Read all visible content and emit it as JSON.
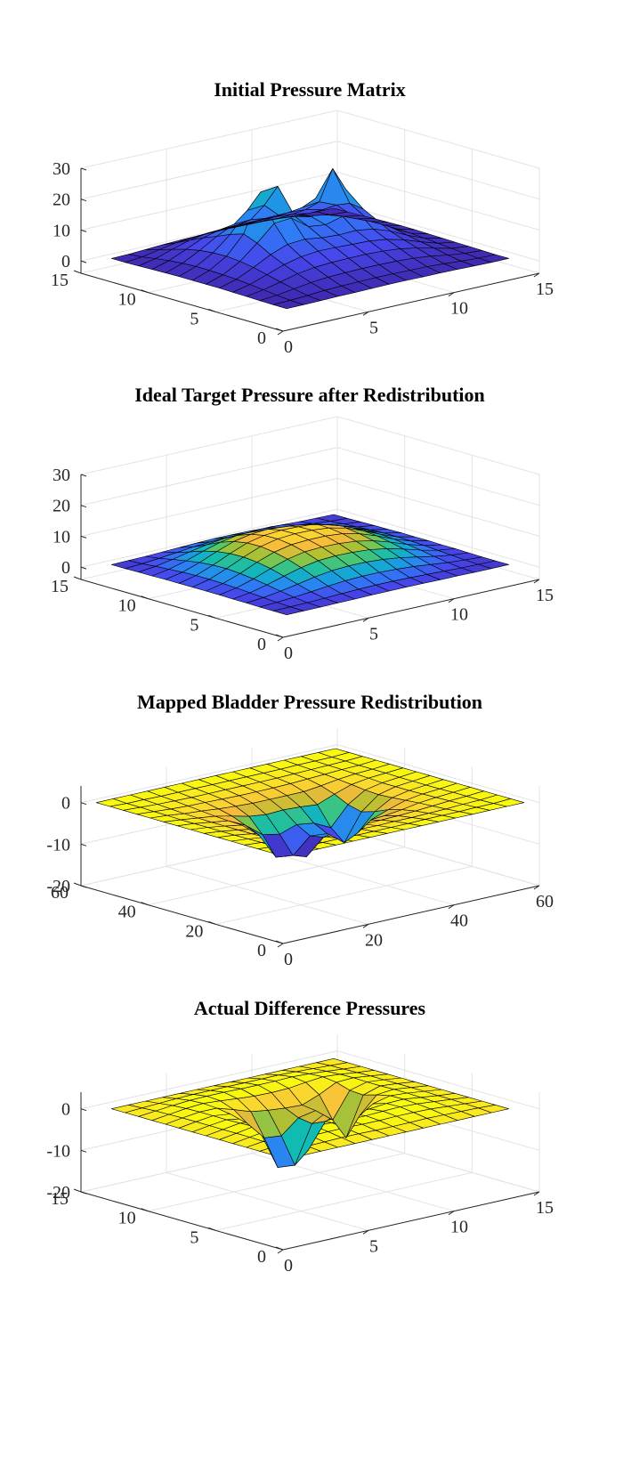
{
  "figure": {
    "background": "#ffffff",
    "colormap": "parula",
    "colormap_stops": [
      "#3e26a8",
      "#4746eb",
      "#2f7cf6",
      "#18a3dc",
      "#12bcb0",
      "#59c864",
      "#b2c032",
      "#f6ba3c",
      "#fad82f",
      "#f9fb0e"
    ],
    "edge_color": "#000000"
  },
  "chart_data": [
    {
      "type": "surface",
      "title": "Initial Pressure Matrix",
      "xlabel": "",
      "ylabel": "",
      "zlabel": "",
      "xlim": [
        0,
        15
      ],
      "ylim": [
        0,
        15
      ],
      "zlim": [
        -4,
        30
      ],
      "clim": [
        0,
        60
      ],
      "x_ticks": [
        "0",
        "5",
        "10",
        "15"
      ],
      "y_ticks": [
        "0",
        "5",
        "10",
        "15"
      ],
      "z_ticks": [
        "0",
        "10",
        "20",
        "30"
      ],
      "x_tick_values": [
        0,
        5,
        10,
        15
      ],
      "y_tick_values": [
        0,
        5,
        10,
        15
      ],
      "z_tick_values": [
        0,
        10,
        20,
        30
      ],
      "grid": true,
      "x": [
        1,
        2,
        3,
        4,
        5,
        6,
        7,
        8,
        9,
        10,
        11,
        12,
        13,
        14
      ],
      "y": [
        1,
        2,
        3,
        4,
        5,
        6,
        7,
        8,
        9,
        10,
        11,
        12,
        13,
        14
      ],
      "z": [
        [
          0.8,
          0.8,
          0.9,
          1,
          1,
          1.1,
          1.2,
          1.2,
          1.1,
          1.1,
          1,
          0.9,
          0.8,
          0.8
        ],
        [
          0.8,
          1,
          1.3,
          1.7,
          1.9,
          2,
          2.1,
          2.1,
          2,
          1.9,
          1.6,
          1.2,
          0.9,
          0.8
        ],
        [
          0.9,
          1.4,
          2.2,
          3,
          3.5,
          3.7,
          3.8,
          3.8,
          3.7,
          3.4,
          2.8,
          1.9,
          1.2,
          0.9
        ],
        [
          1,
          1.9,
          3.2,
          4.6,
          5.4,
          5.8,
          5.9,
          5.9,
          5.7,
          5.2,
          4.2,
          2.9,
          1.6,
          1
        ],
        [
          1.1,
          2.4,
          4.3,
          6.3,
          7.6,
          8.2,
          8.1,
          7.9,
          7.7,
          7,
          5.6,
          3.7,
          2,
          1.1
        ],
        [
          1.2,
          2.8,
          5.4,
          8.3,
          10.4,
          10.8,
          10,
          9.7,
          9.9,
          9.1,
          7.2,
          4.6,
          2.4,
          1.2
        ],
        [
          1.2,
          3,
          6.1,
          10.8,
          15.9,
          16.4,
          12.4,
          11.7,
          13.2,
          12.8,
          9.5,
          5.5,
          2.7,
          1.3
        ],
        [
          1.2,
          3.2,
          6.5,
          12.5,
          24.8,
          25.4,
          14.4,
          13,
          16.8,
          19.3,
          11.8,
          6.1,
          2.9,
          1.4
        ],
        [
          1.2,
          3.2,
          6.4,
          11.1,
          17.6,
          18,
          12.9,
          12.5,
          16.5,
          24.9,
          12.4,
          6.2,
          2.9,
          1.4
        ],
        [
          1.1,
          3,
          5.9,
          9.2,
          11.8,
          12.1,
          11.3,
          11.4,
          12.3,
          12.9,
          10.6,
          5.8,
          2.8,
          1.3
        ],
        [
          1,
          2.6,
          5,
          7.5,
          8.9,
          9.1,
          9.1,
          9.3,
          9.4,
          9.1,
          7.8,
          4.9,
          2.4,
          1.2
        ],
        [
          0.9,
          2,
          3.8,
          5.5,
          6.4,
          6.6,
          6.7,
          6.8,
          6.8,
          6.4,
          5.4,
          3.7,
          1.9,
          1
        ],
        [
          0.8,
          1.3,
          2.4,
          3.4,
          3.9,
          4.1,
          4.2,
          4.2,
          4.1,
          3.8,
          3.2,
          2.2,
          1.2,
          0.9
        ],
        [
          0.8,
          0.9,
          1.2,
          1.5,
          1.7,
          1.8,
          1.9,
          1.9,
          1.8,
          1.7,
          1.4,
          1.1,
          0.9,
          0.8
        ]
      ]
    },
    {
      "type": "surface",
      "title": "Ideal Target Pressure after Redistribution",
      "xlabel": "",
      "ylabel": "",
      "zlabel": "",
      "xlim": [
        0,
        15
      ],
      "ylim": [
        0,
        15
      ],
      "zlim": [
        -4,
        30
      ],
      "clim": [
        0,
        12
      ],
      "x_ticks": [
        "0",
        "5",
        "10",
        "15"
      ],
      "y_ticks": [
        "0",
        "5",
        "10",
        "15"
      ],
      "z_ticks": [
        "0",
        "10",
        "20",
        "30"
      ],
      "x_tick_values": [
        0,
        5,
        10,
        15
      ],
      "y_tick_values": [
        0,
        5,
        10,
        15
      ],
      "z_tick_values": [
        0,
        10,
        20,
        30
      ],
      "grid": true,
      "x": [
        1,
        2,
        3,
        4,
        5,
        6,
        7,
        8,
        9,
        10,
        11,
        12,
        13,
        14
      ],
      "y": [
        1,
        2,
        3,
        4,
        5,
        6,
        7,
        8,
        9,
        10,
        11,
        12,
        13,
        14
      ],
      "z": [
        [
          0.8,
          0.8,
          0.8,
          0.9,
          0.9,
          1,
          1,
          1,
          1,
          0.9,
          0.9,
          0.8,
          0.8,
          0.8
        ],
        [
          0.8,
          0.9,
          1,
          1.2,
          1.4,
          1.6,
          1.7,
          1.7,
          1.6,
          1.4,
          1.2,
          1,
          0.9,
          0.8
        ],
        [
          0.8,
          1.1,
          1.5,
          2,
          2.6,
          3.1,
          3.3,
          3.3,
          3.1,
          2.7,
          2.1,
          1.5,
          1.1,
          0.8
        ],
        [
          0.9,
          1.4,
          2.2,
          3.2,
          4.3,
          5.1,
          5.4,
          5.4,
          5,
          4.3,
          3.3,
          2.2,
          1.4,
          0.9
        ],
        [
          0.9,
          1.7,
          3,
          4.6,
          6.1,
          7.1,
          7.4,
          7.3,
          6.9,
          6,
          4.6,
          3,
          1.7,
          1
        ],
        [
          1,
          2,
          3.7,
          5.8,
          7.6,
          8.7,
          9,
          8.9,
          8.4,
          7.3,
          5.6,
          3.6,
          2,
          1
        ],
        [
          1,
          2.2,
          4.2,
          6.6,
          8.6,
          9.8,
          10.1,
          10.1,
          9.6,
          8.3,
          6.4,
          4.1,
          2.2,
          1.1
        ],
        [
          1,
          2.3,
          4.5,
          7,
          9.2,
          10.4,
          10.8,
          10.7,
          10.2,
          8.9,
          6.8,
          4.4,
          2.3,
          1.1
        ],
        [
          1,
          2.3,
          4.4,
          6.9,
          9.1,
          10.3,
          10.7,
          10.6,
          10.3,
          10.5,
          6.8,
          4.4,
          2.3,
          1.1
        ],
        [
          1,
          2.1,
          4,
          6.3,
          8.3,
          9.4,
          9.8,
          9.7,
          9.4,
          8.5,
          6.3,
          4,
          2.1,
          1
        ],
        [
          0.9,
          1.8,
          3.3,
          5.2,
          6.8,
          7.8,
          8.1,
          8.1,
          7.7,
          6.8,
          5.2,
          3.4,
          1.8,
          1
        ],
        [
          0.9,
          1.5,
          2.5,
          3.7,
          4.8,
          5.5,
          5.8,
          5.8,
          5.5,
          4.8,
          3.8,
          2.5,
          1.5,
          0.9
        ],
        [
          0.8,
          1.1,
          1.6,
          2.2,
          2.8,
          3.2,
          3.4,
          3.4,
          3.2,
          2.8,
          2.3,
          1.6,
          1.1,
          0.8
        ],
        [
          0.8,
          0.9,
          1,
          1.2,
          1.4,
          1.6,
          1.7,
          1.7,
          1.6,
          1.4,
          1.2,
          1,
          0.9,
          0.8
        ]
      ]
    },
    {
      "type": "surface",
      "title": "Mapped Bladder Pressure Redistribution",
      "xlabel": "",
      "ylabel": "",
      "zlabel": "",
      "xlim": [
        0,
        60
      ],
      "ylim": [
        0,
        60
      ],
      "zlim": [
        -20,
        4
      ],
      "clim": [
        -10,
        0
      ],
      "x_ticks": [
        "0",
        "20",
        "40",
        "60"
      ],
      "y_ticks": [
        "0",
        "20",
        "40",
        "60"
      ],
      "z_ticks": [
        "-20",
        "-10",
        "0"
      ],
      "x_tick_values": [
        0,
        20,
        40,
        60
      ],
      "y_tick_values": [
        0,
        20,
        40,
        60
      ],
      "z_tick_values": [
        -20,
        -10,
        0
      ],
      "grid": true,
      "x": [
        2,
        6,
        10,
        14,
        18,
        22,
        26,
        30,
        34,
        38,
        42,
        46,
        50,
        54,
        58
      ],
      "y": [
        2,
        6,
        10,
        14,
        18,
        22,
        26,
        30,
        34,
        38,
        42,
        46,
        50,
        54,
        58
      ],
      "z": [
        [
          0,
          0,
          0,
          0,
          0,
          0,
          0,
          0,
          0,
          0,
          0,
          0,
          0,
          0,
          0
        ],
        [
          0,
          -0.2,
          -0.3,
          -0.3,
          -0.3,
          -0.4,
          -0.4,
          -0.4,
          -0.4,
          -0.3,
          -0.3,
          -0.3,
          -0.2,
          -0.2,
          0
        ],
        [
          0,
          -0.3,
          -0.6,
          -0.7,
          -0.8,
          -0.8,
          -0.8,
          -0.9,
          -0.8,
          -0.8,
          -0.7,
          -0.6,
          -0.4,
          -0.3,
          0
        ],
        [
          0,
          -0.3,
          -0.8,
          -1.1,
          -1.3,
          -1.4,
          -1.5,
          -1.5,
          -1.4,
          -1.3,
          -1.1,
          -0.8,
          -0.5,
          -0.3,
          0
        ],
        [
          0,
          -0.4,
          -0.9,
          -1.4,
          -2,
          -2.4,
          -2.6,
          -2.6,
          -2.5,
          -2.2,
          -1.7,
          -1,
          -0.6,
          -0.3,
          0
        ],
        [
          0,
          -0.4,
          -1,
          -1.6,
          -3,
          -4.5,
          -5.6,
          -4.8,
          -4.3,
          -4.1,
          -2.6,
          -1.3,
          -0.7,
          -0.4,
          0
        ],
        [
          0,
          -0.4,
          -1,
          -1.7,
          -4.5,
          -8.5,
          -11.2,
          -7.4,
          -6.5,
          -8.2,
          -4,
          -1.6,
          -0.8,
          -0.4,
          0
        ],
        [
          0,
          -0.4,
          -1,
          -1.7,
          -5,
          -11.3,
          -11.8,
          -8,
          -8.4,
          -11.5,
          -5,
          -1.8,
          -0.8,
          -0.4,
          0
        ],
        [
          0,
          -0.4,
          -1,
          -1.6,
          -3.6,
          -6.8,
          -7.6,
          -6.2,
          -6.8,
          -8.8,
          -4.2,
          -1.6,
          -0.8,
          -0.4,
          0
        ],
        [
          0,
          -0.4,
          -0.9,
          -1.4,
          -2.3,
          -3.3,
          -3.8,
          -3.6,
          -3.8,
          -4.2,
          -2.6,
          -1.2,
          -0.6,
          -0.3,
          0
        ],
        [
          0,
          -0.3,
          -0.8,
          -1.1,
          -1.5,
          -1.8,
          -2,
          -2,
          -2,
          -2,
          -1.5,
          -0.9,
          -0.5,
          -0.3,
          0
        ],
        [
          0,
          -0.3,
          -0.6,
          -0.8,
          -0.9,
          -1,
          -1.1,
          -1.1,
          -1.1,
          -1,
          -0.8,
          -0.6,
          -0.4,
          -0.3,
          0
        ],
        [
          0,
          -0.2,
          -0.4,
          -0.5,
          -0.6,
          -0.6,
          -0.6,
          -0.6,
          -0.6,
          -0.6,
          -0.5,
          -0.4,
          -0.3,
          -0.2,
          0
        ],
        [
          0,
          -0.2,
          -0.2,
          -0.3,
          -0.3,
          -0.3,
          -0.3,
          -0.3,
          -0.3,
          -0.3,
          -0.3,
          -0.2,
          -0.2,
          -0.2,
          0
        ],
        [
          0,
          0,
          0,
          0,
          0,
          0,
          0,
          0,
          0,
          0,
          0,
          0,
          0,
          0,
          0
        ]
      ]
    },
    {
      "type": "surface",
      "title": "Actual Difference Pressures",
      "xlabel": "",
      "ylabel": "",
      "zlabel": "",
      "xlim": [
        0,
        15
      ],
      "ylim": [
        0,
        15
      ],
      "zlim": [
        -20,
        4
      ],
      "clim": [
        -14,
        1
      ],
      "x_ticks": [
        "0",
        "5",
        "10",
        "15"
      ],
      "y_ticks": [
        "0",
        "5",
        "10",
        "15"
      ],
      "z_ticks": [
        "-20",
        "-10",
        "0"
      ],
      "x_tick_values": [
        0,
        5,
        10,
        15
      ],
      "y_tick_values": [
        0,
        5,
        10,
        15
      ],
      "z_tick_values": [
        -20,
        -10,
        0
      ],
      "grid": true,
      "x": [
        1,
        2,
        3,
        4,
        5,
        6,
        7,
        8,
        9,
        10,
        11,
        12,
        13,
        14
      ],
      "y": [
        1,
        2,
        3,
        4,
        5,
        6,
        7,
        8,
        9,
        10,
        11,
        12,
        13,
        14
      ],
      "z": [
        [
          0,
          0,
          0,
          0,
          0,
          0,
          0,
          0,
          0,
          0,
          0,
          0,
          0,
          0
        ],
        [
          0,
          0.2,
          0.3,
          0.4,
          0.5,
          0.5,
          0.4,
          0.4,
          0.4,
          0.5,
          0.4,
          0.3,
          0.2,
          0
        ],
        [
          0,
          0.4,
          0.7,
          0.9,
          1,
          1,
          0.9,
          0.9,
          1,
          1,
          0.9,
          0.6,
          0.3,
          0
        ],
        [
          0,
          0.5,
          1,
          1.3,
          1.4,
          1.3,
          1.1,
          1.1,
          1.3,
          1.4,
          1.2,
          0.8,
          0.4,
          0
        ],
        [
          0,
          0.6,
          1.2,
          1.6,
          1.4,
          1,
          0.6,
          0.6,
          0.9,
          1.3,
          1.4,
          0.9,
          0.4,
          0
        ],
        [
          0,
          0.6,
          1.3,
          1.5,
          0.6,
          -0.5,
          -1.3,
          -0.8,
          -0.4,
          0.3,
          1.3,
          1,
          0.5,
          0
        ],
        [
          0,
          0.6,
          1.2,
          1,
          -1.8,
          -6.5,
          -9,
          -3,
          -1.6,
          -3.5,
          0.6,
          1,
          0.5,
          0
        ],
        [
          0,
          0.6,
          1.1,
          0.4,
          -4,
          -13.2,
          -13.6,
          -4.5,
          -2.2,
          -9.8,
          -0.4,
          0.9,
          0.5,
          0
        ],
        [
          0,
          0.6,
          1.1,
          0.6,
          -2.6,
          -7,
          -7.4,
          -4,
          -3.2,
          -6.4,
          -0.2,
          0.9,
          0.5,
          0
        ],
        [
          0,
          0.6,
          1.1,
          1.1,
          -0.2,
          -1.6,
          -2.2,
          -2.6,
          -2.8,
          -1.2,
          0.8,
          1,
          0.5,
          0
        ],
        [
          0,
          0.5,
          1,
          1.3,
          1,
          0.6,
          0.3,
          0.2,
          0.3,
          0.8,
          1.2,
          0.9,
          0.4,
          0
        ],
        [
          0,
          0.4,
          0.8,
          1.1,
          1.2,
          1.2,
          1.1,
          1.1,
          1.1,
          1.2,
          1,
          0.7,
          0.3,
          0
        ],
        [
          0,
          0.2,
          0.4,
          0.6,
          0.7,
          0.7,
          0.7,
          0.7,
          0.7,
          0.7,
          0.6,
          0.4,
          0.2,
          0
        ],
        [
          0,
          0,
          0,
          0,
          0,
          0,
          0,
          0,
          0,
          0,
          0,
          0,
          0,
          0
        ]
      ]
    }
  ]
}
